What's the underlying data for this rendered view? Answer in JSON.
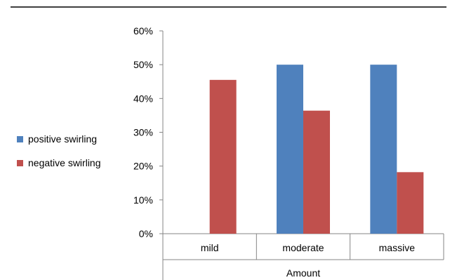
{
  "chart_data": {
    "type": "bar",
    "categories": [
      "mild",
      "moderate",
      "massive"
    ],
    "series": [
      {
        "name": "positive swirling",
        "color": "#4f81bd",
        "values": [
          0,
          50,
          50
        ]
      },
      {
        "name": "negative swirling",
        "color": "#c0504d",
        "values": [
          45.5,
          36.4,
          18.2
        ]
      }
    ],
    "y_ticks": [
      "0%",
      "10%",
      "20%",
      "30%",
      "40%",
      "50%",
      "60%"
    ],
    "ylim": [
      0,
      60
    ],
    "xlabel": "Amount",
    "ylabel": "",
    "grid": false,
    "legend_position": "left"
  }
}
